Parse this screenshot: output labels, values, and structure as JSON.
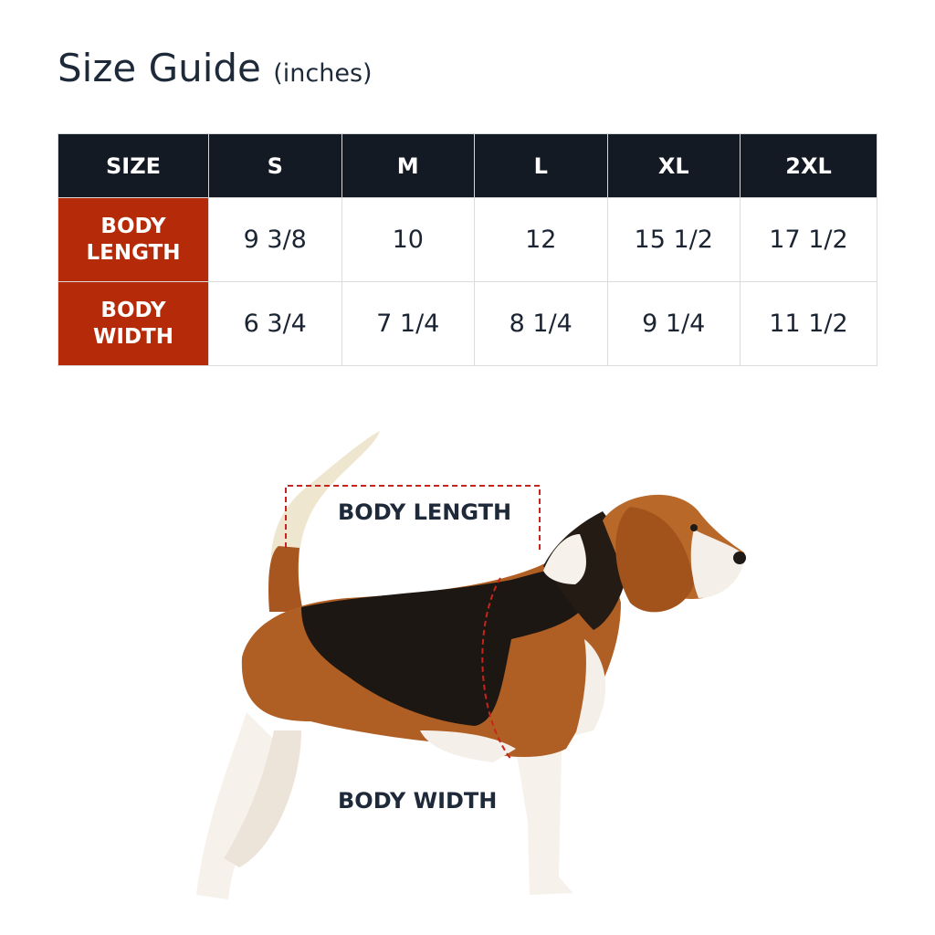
{
  "title": "Size Guide",
  "unit": "(inches)",
  "table": {
    "header": [
      "SIZE",
      "S",
      "M",
      "L",
      "XL",
      "2XL"
    ],
    "rows": [
      {
        "label_line1": "BODY",
        "label_line2": "LENGTH",
        "values": [
          "9 3/8",
          "10",
          "12",
          "15 1/2",
          "17 1/2"
        ]
      },
      {
        "label_line1": "BODY",
        "label_line2": "WIDTH",
        "values": [
          "6 3/4",
          "7 1/4",
          "8 1/4",
          "9 1/4",
          "11 1/2"
        ]
      }
    ]
  },
  "diagram": {
    "length_label": "BODY LENGTH",
    "width_label": "BODY WIDTH"
  },
  "colors": {
    "header_bg": "#141a24",
    "row_label_bg": "#b52a08",
    "measure_line": "#c8241c"
  }
}
